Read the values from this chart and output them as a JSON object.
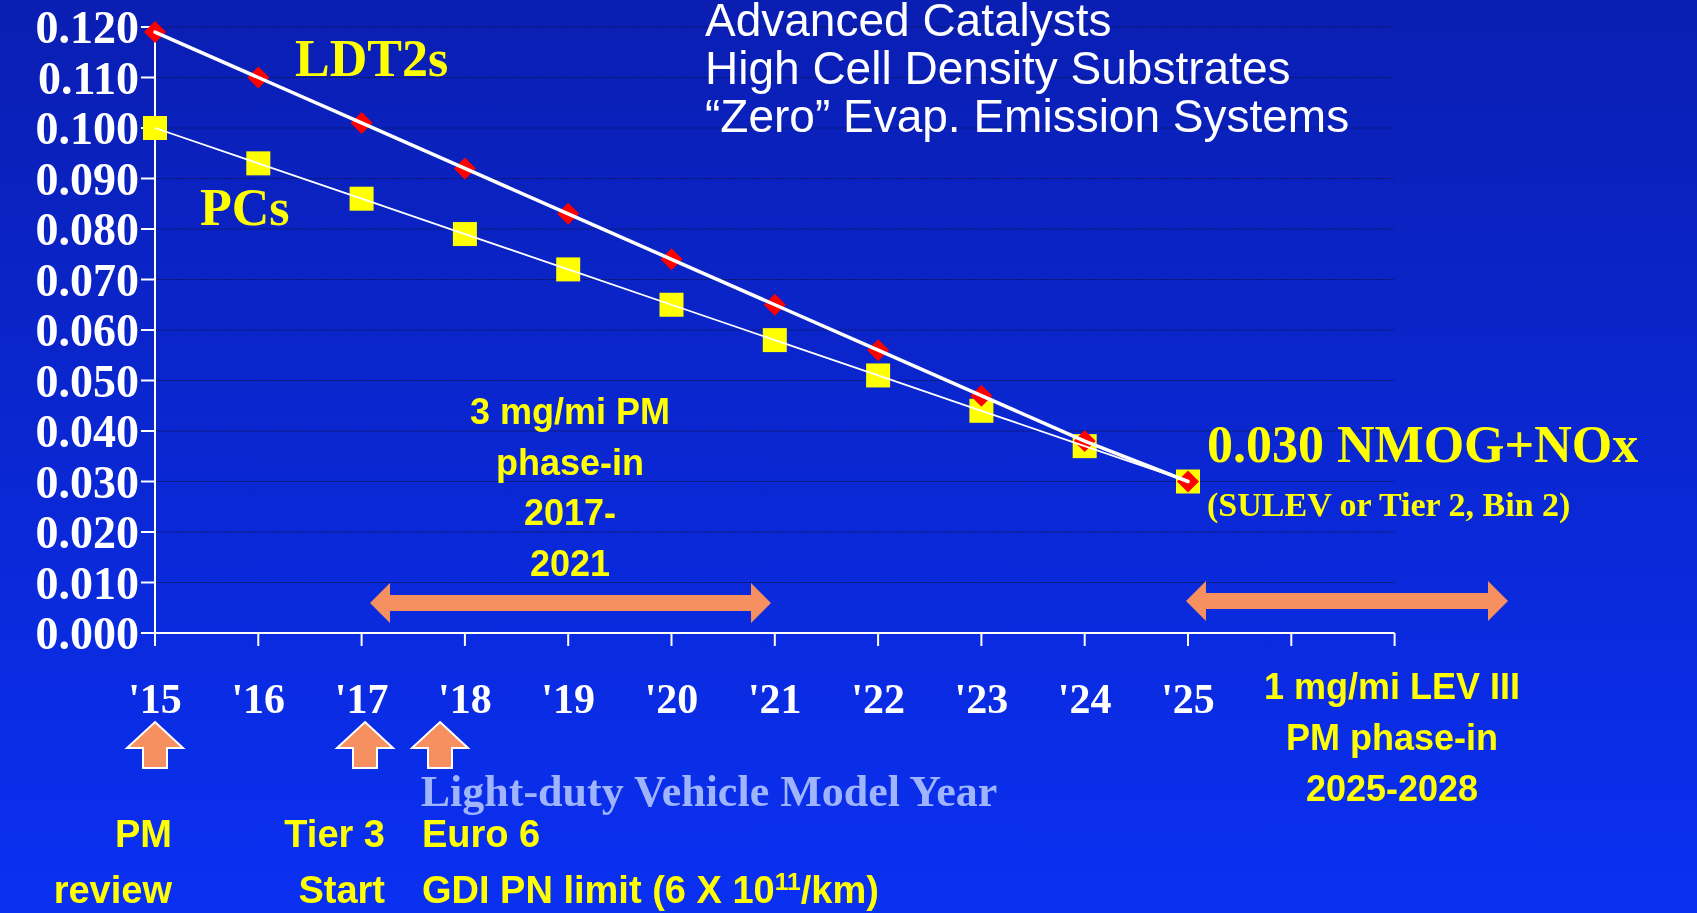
{
  "chart_data": {
    "type": "line",
    "xlabel": "Light-duty Vehicle Model Year",
    "categories": [
      "'15",
      "'16",
      "'17",
      "'18",
      "'19",
      "'20",
      "'21",
      "'22",
      "'23",
      "'24",
      "'25",
      null,
      null
    ],
    "series": [
      {
        "name": "LDT2s",
        "color": "#ff0000",
        "marker": "diamond",
        "values": [
          0.119,
          0.11,
          0.101,
          0.092,
          0.083,
          0.074,
          0.065,
          0.056,
          0.047,
          0.038,
          0.03,
          null,
          null
        ]
      },
      {
        "name": "PCs",
        "color": "#ffff00",
        "marker": "square",
        "values": [
          0.1,
          0.093,
          0.086,
          0.079,
          0.072,
          0.065,
          0.058,
          0.051,
          0.044,
          0.037,
          0.03,
          null,
          null
        ]
      }
    ],
    "ylim": [
      0,
      0.12
    ],
    "yticks": [
      {
        "value": 0,
        "label": "0.000"
      },
      {
        "value": 0.01,
        "label": "0.010"
      },
      {
        "value": 0.02,
        "label": "0.020"
      },
      {
        "value": 0.03,
        "label": "0.030"
      },
      {
        "value": 0.04,
        "label": "0.040"
      },
      {
        "value": 0.05,
        "label": "0.050"
      },
      {
        "value": 0.06,
        "label": "0.060"
      },
      {
        "value": 0.07,
        "label": "0.070"
      },
      {
        "value": 0.08,
        "label": "0.080"
      },
      {
        "value": 0.09,
        "label": "0.090"
      },
      {
        "value": 0.1,
        "label": "0.100"
      },
      {
        "value": 0.11,
        "label": "0.110"
      },
      {
        "value": 0.12,
        "label": "0.120"
      }
    ],
    "grid": "y",
    "annotations": [
      "Advanced Catalysts",
      "High Cell Density Substrates",
      "“Zero” Evap. Emission Systems",
      "0.030 NMOG+NOx",
      "(SULEV or Tier 2, Bin 2)",
      "3 mg/mi PM phase-in 2017- 2021",
      "1 mg/mi LEV III PM phase-in 2025-2028",
      "PM review",
      "Tier 3 Start",
      "Euro 6 GDI PN limit (6 X 10$^{11}$/km)"
    ]
  }
}
